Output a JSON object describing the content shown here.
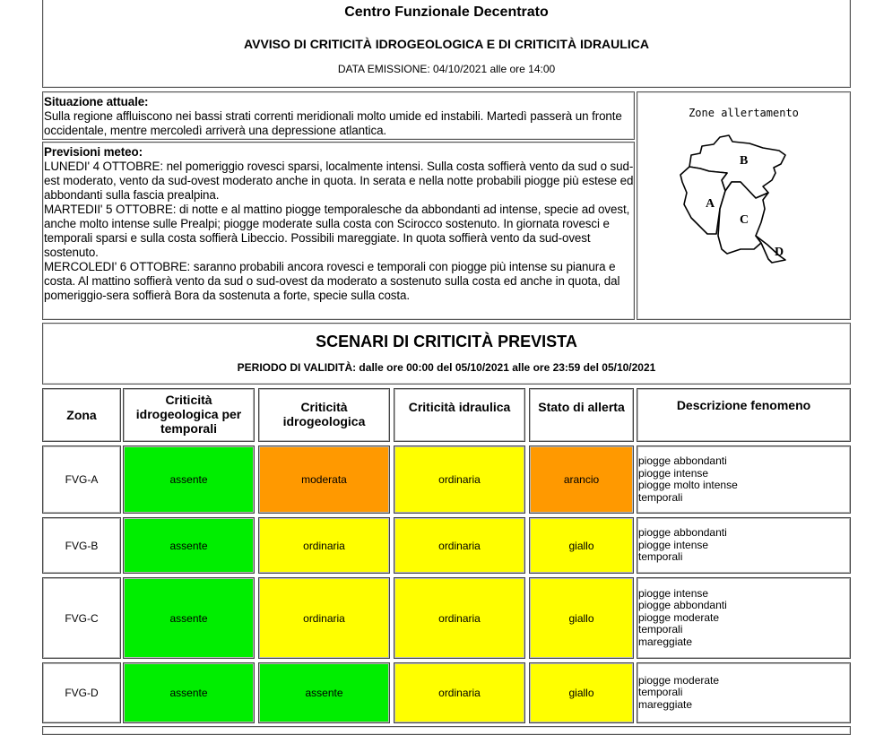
{
  "header": {
    "title": "Centro Funzionale Decentrato",
    "subtitle": "AVVISO DI CRITICITÀ IDROGEOLOGICA E DI CRITICITÀ IDRAULICA",
    "issue_date": "DATA EMISSIONE: 04/10/2021 alle ore 14:00"
  },
  "situation": {
    "heading": "Situazione attuale:",
    "text": "Sulla regione affluiscono nei bassi strati correnti meridionali molto umide ed instabili. Martedì passerà un fronte occidentale, mentre mercoledì arriverà una depressione atlantica."
  },
  "forecast": {
    "heading": "Previsioni meteo:",
    "paragraphs": [
      "LUNEDI' 4 OTTOBRE: nel pomeriggio rovesci sparsi, localmente intensi. Sulla costa soffierà vento da sud o sud-est moderato, vento da sud-ovest moderato anche in quota. In serata e nella notte probabili piogge più estese ed abbondanti sulla fascia prealpina.",
      "MARTEDII' 5 OTTOBRE: di notte e al mattino piogge temporalesche da abbondanti ad intense, specie ad ovest, anche molto intense sulle Prealpi; piogge moderate sulla costa con Scirocco sostenuto. In giornata rovesci e temporali sparsi e sulla costa soffierà Libeccio. Possibili mareggiate. In quota soffierà vento da sud-ovest sostenuto.",
      "MERCOLEDI' 6 OTTOBRE: saranno probabili ancora rovesci e temporali con piogge più intense su pianura e costa. Al mattino soffierà vento da sud o sud-ovest da moderato a sostenuto sulla costa ed anche in quota, dal pomeriggio-sera soffierà Bora da sostenuta a forte, specie sulla costa."
    ]
  },
  "map": {
    "title": "Zone allertamento",
    "labels": [
      "A",
      "B",
      "C",
      "D"
    ]
  },
  "scenari": {
    "title": "SCENARI DI CRITICITÀ PREVISTA",
    "validity": "PERIODO DI VALIDITÀ: dalle ore 00:00 del 05/10/2021 alle ore 23:59 del 05/10/2021"
  },
  "colors": {
    "assente": "#00ee00",
    "ordinaria": "#ffff00",
    "giallo": "#ffff00",
    "moderata": "#ff9900",
    "arancio": "#ff9900"
  },
  "table": {
    "headers": [
      "Zona",
      "Criticità idrogeologica per temporali",
      "Criticità idrogeologica",
      "Criticità idraulica",
      "Stato di allerta",
      "Descrizione fenomeno"
    ],
    "rows": [
      {
        "zona": "FVG-A",
        "temporali": "assente",
        "idrogeo": "moderata",
        "idraulica": "ordinaria",
        "allerta": "arancio",
        "desc": [
          "piogge abbondanti",
          "piogge intense",
          "piogge molto intense",
          "temporali"
        ]
      },
      {
        "zona": "FVG-B",
        "temporali": "assente",
        "idrogeo": "ordinaria",
        "idraulica": "ordinaria",
        "allerta": "giallo",
        "desc": [
          "piogge abbondanti",
          "piogge intense",
          "temporali"
        ]
      },
      {
        "zona": "FVG-C",
        "temporali": "assente",
        "idrogeo": "ordinaria",
        "idraulica": "ordinaria",
        "allerta": "giallo",
        "desc": [
          "piogge intense",
          "piogge abbondanti",
          "piogge moderate",
          "temporali",
          "mareggiate"
        ]
      },
      {
        "zona": "FVG-D",
        "temporali": "assente",
        "idrogeo": "assente",
        "idraulica": "ordinaria",
        "allerta": "giallo",
        "desc": [
          "piogge moderate",
          "temporali",
          "mareggiate"
        ]
      }
    ]
  }
}
